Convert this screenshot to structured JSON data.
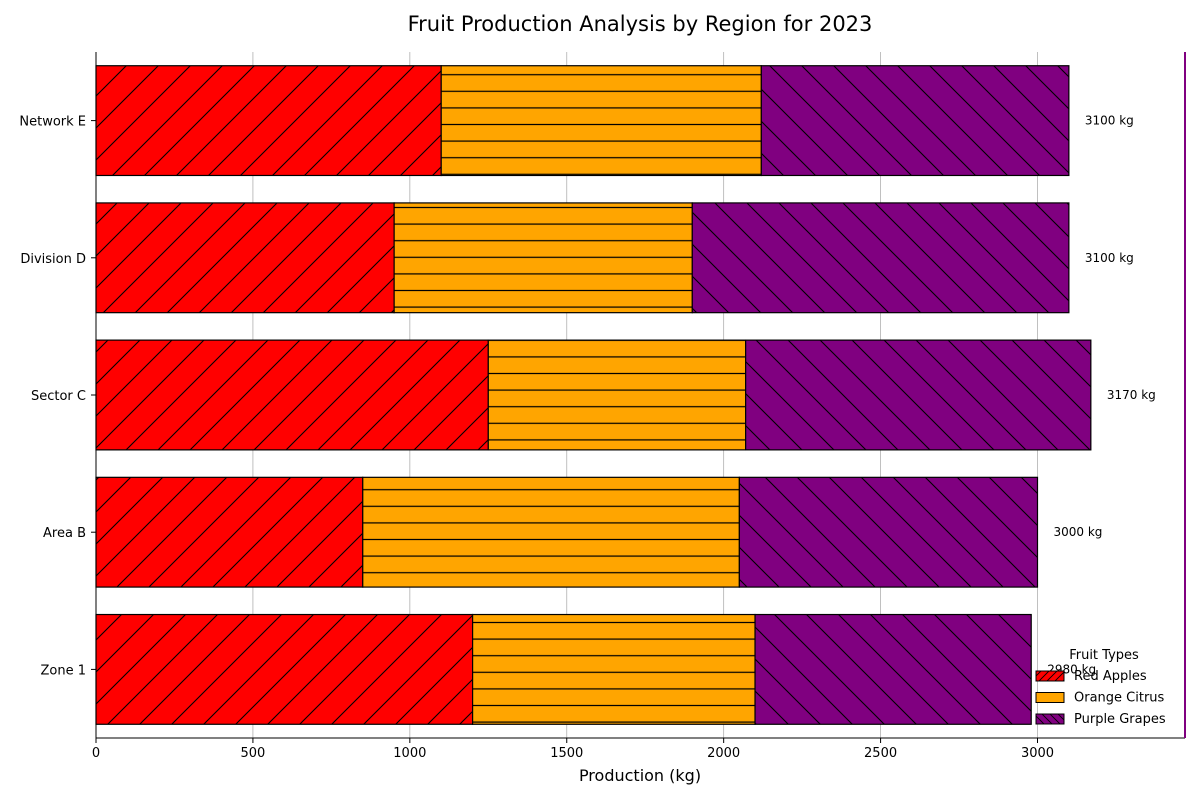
{
  "chart_data": {
    "type": "bar",
    "orientation": "horizontal",
    "stacked": true,
    "title": "Fruit Production Analysis by Region for 2023",
    "xlabel": "Production (kg)",
    "ylabel": "",
    "xlim": [
      0,
      3470
    ],
    "xticks": [
      0,
      500,
      1000,
      1500,
      2000,
      2500,
      3000
    ],
    "grid": "vertical",
    "categories": [
      "Zone 1",
      "Area B",
      "Sector C",
      "Division D",
      "Network E"
    ],
    "series": [
      {
        "name": "Red Apples",
        "values": [
          1200,
          850,
          1250,
          950,
          1100
        ],
        "color": "#ff0000",
        "hatch": "forward-diagonal"
      },
      {
        "name": "Orange Citrus",
        "values": [
          900,
          1200,
          820,
          950,
          1020
        ],
        "color": "#ffa500",
        "hatch": "horizontal"
      },
      {
        "name": "Purple Grapes",
        "values": [
          880,
          950,
          1100,
          1200,
          980
        ],
        "color": "#800080",
        "hatch": "back-diagonal"
      }
    ],
    "total_labels": [
      "2980 kg",
      "3000 kg",
      "3170 kg",
      "3100 kg",
      "3100 kg"
    ],
    "legend": {
      "title": "Fruit Types",
      "placement": "lower-right"
    },
    "right_spine_color": "#800080"
  }
}
